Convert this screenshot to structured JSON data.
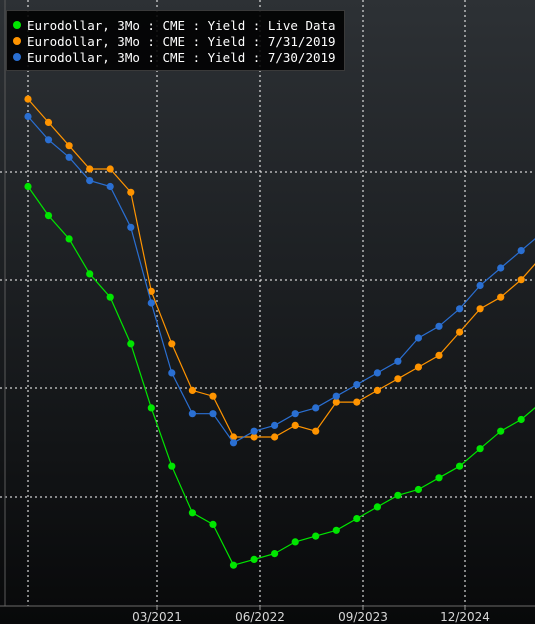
{
  "chart_data": {
    "type": "line",
    "title": "",
    "xlabel": "",
    "ylabel": "",
    "x_tick_labels": [
      "03/2021",
      "06/2022",
      "09/2023",
      "12/2024"
    ],
    "y_range": [
      1.34,
      2.38
    ],
    "grid": true,
    "legend_position": "top-left",
    "series": [
      {
        "name": "Eurodollar, 3Mo : CME : Yield : Live Data",
        "color": "#00e600",
        "values": [
          2.06,
          2.01,
          1.97,
          1.91,
          1.87,
          1.79,
          1.68,
          1.58,
          1.5,
          1.48,
          1.41,
          1.42,
          1.43,
          1.45,
          1.46,
          1.47,
          1.49,
          1.51,
          1.53,
          1.54,
          1.56,
          1.58,
          1.61,
          1.64,
          1.66,
          1.69,
          1.72,
          1.75,
          1.78,
          1.78,
          1.81,
          1.85,
          1.89
        ]
      },
      {
        "name": "Eurodollar, 3Mo : CME : Yield : 7/31/2019",
        "color": "#ff9400",
        "values": [
          2.21,
          2.17,
          2.13,
          2.09,
          2.09,
          2.05,
          1.88,
          1.79,
          1.71,
          1.7,
          1.63,
          1.63,
          1.63,
          1.65,
          1.64,
          1.69,
          1.69,
          1.71,
          1.73,
          1.75,
          1.77,
          1.81,
          1.85,
          1.87,
          1.9,
          1.94,
          1.97,
          2.0,
          2.04,
          2.07,
          2.1,
          2.12,
          2.15
        ]
      },
      {
        "name": "Eurodollar, 3Mo : CME : Yield : 7/30/2019",
        "color": "#2a6fd2",
        "values": [
          2.18,
          2.14,
          2.11,
          2.07,
          2.06,
          1.99,
          1.86,
          1.74,
          1.67,
          1.67,
          1.62,
          1.64,
          1.65,
          1.67,
          1.68,
          1.7,
          1.72,
          1.74,
          1.76,
          1.8,
          1.82,
          1.85,
          1.89,
          1.92,
          1.95,
          1.98,
          2.01,
          2.04,
          2.08,
          2.1,
          2.14,
          2.17,
          2.19
        ]
      }
    ]
  }
}
